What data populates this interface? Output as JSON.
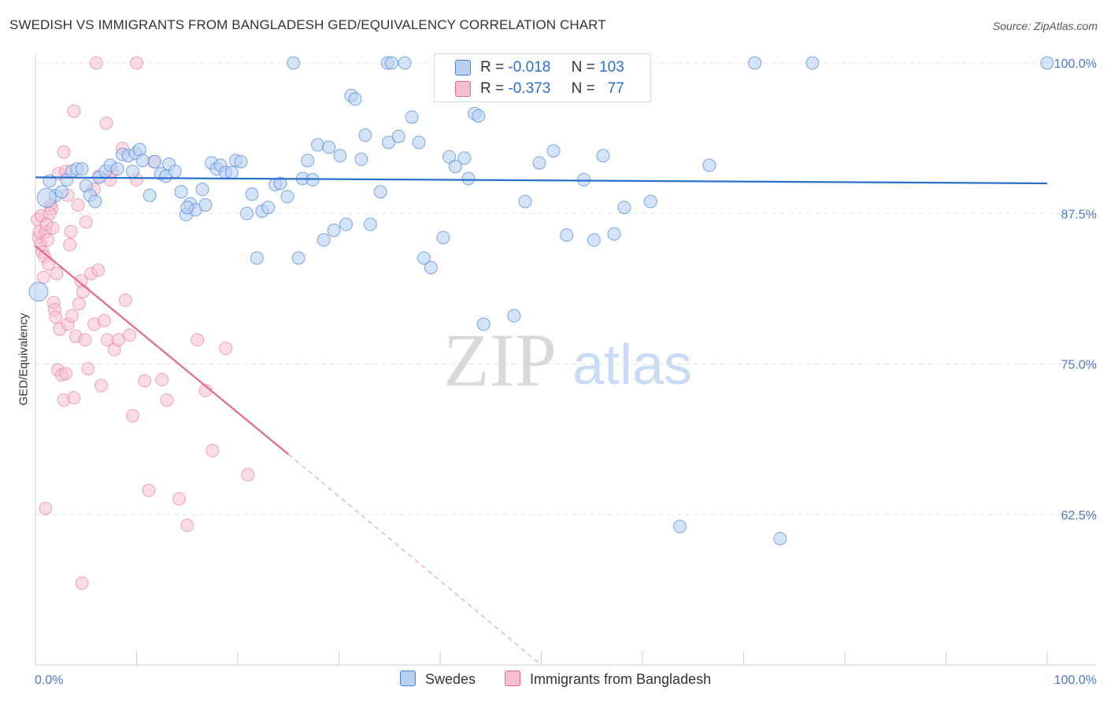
{
  "header": {
    "title": "SWEDISH VS IMMIGRANTS FROM BANGLADESH GED/EQUIVALENCY CORRELATION CHART",
    "source": "Source: ZipAtlas.com"
  },
  "watermark": {
    "zip": "ZIP",
    "atlas": "atlas"
  },
  "colors": {
    "blue": "#4a86d4",
    "blue_fill": "#b9d1f1",
    "pink": "#e2688f",
    "pink_fill": "#f6bfd0",
    "axis_text": "#4a78c2"
  },
  "legend_top": {
    "rows": [
      {
        "r_label": "R =",
        "r_value": "-0.018",
        "n_label": "N =",
        "n_value": "103"
      },
      {
        "r_label": "R =",
        "r_value": "-0.373",
        "n_label": "N =",
        "n_value": "77"
      }
    ]
  },
  "legend_bottom": {
    "items": [
      "Swedes",
      "Immigrants from Bangladesh"
    ]
  },
  "chart_data": {
    "type": "scatter",
    "title": "SWEDISH VS IMMIGRANTS FROM BANGLADESH GED/EQUIVALENCY CORRELATION CHART",
    "xlabel": "",
    "ylabel": "GED/Equivalency",
    "xlim": [
      0,
      100
    ],
    "ylim": [
      50,
      100
    ],
    "x_tick_labels": [
      "0.0%",
      "100.0%"
    ],
    "y_ticks": [
      62.5,
      75.0,
      87.5,
      100.0
    ],
    "y_tick_labels": [
      "62.5%",
      "75.0%",
      "87.5%",
      "100.0%"
    ],
    "grid": true,
    "series": [
      {
        "name": "Swedes",
        "color": "#4a86d4",
        "trend": {
          "x0": 0,
          "y0": 90.5,
          "x1": 100,
          "y1": 90.0
        },
        "points": [
          [
            1.4,
            90.2
          ],
          [
            2.0,
            89.0
          ],
          [
            2.6,
            89.3
          ],
          [
            3.1,
            90.3
          ],
          [
            3.6,
            91.0
          ],
          [
            4.1,
            91.2
          ],
          [
            4.6,
            91.2
          ],
          [
            5.0,
            89.8
          ],
          [
            5.4,
            89.0
          ],
          [
            5.9,
            88.5
          ],
          [
            6.3,
            90.5
          ],
          [
            6.9,
            91.0
          ],
          [
            7.4,
            91.5
          ],
          [
            8.1,
            91.2
          ],
          [
            8.6,
            92.4
          ],
          [
            9.2,
            92.3
          ],
          [
            9.9,
            92.5
          ],
          [
            10.3,
            92.8
          ],
          [
            10.6,
            91.9
          ],
          [
            11.3,
            89.0
          ],
          [
            11.8,
            91.8
          ],
          [
            12.4,
            90.8
          ],
          [
            12.9,
            90.6
          ],
          [
            13.2,
            91.6
          ],
          [
            13.8,
            91.0
          ],
          [
            14.4,
            89.3
          ],
          [
            14.9,
            87.4
          ],
          [
            15.3,
            88.3
          ],
          [
            15.8,
            87.8
          ],
          [
            16.5,
            89.5
          ],
          [
            17.4,
            91.7
          ],
          [
            17.9,
            91.2
          ],
          [
            18.3,
            91.5
          ],
          [
            18.8,
            90.9
          ],
          [
            19.4,
            90.9
          ],
          [
            19.8,
            91.9
          ],
          [
            20.3,
            91.8
          ],
          [
            20.9,
            87.5
          ],
          [
            21.4,
            89.1
          ],
          [
            21.9,
            83.8
          ],
          [
            22.4,
            87.7
          ],
          [
            23.0,
            88.0
          ],
          [
            23.7,
            89.9
          ],
          [
            24.2,
            90.0
          ],
          [
            24.9,
            88.9
          ],
          [
            25.5,
            100.0
          ],
          [
            26.0,
            83.8
          ],
          [
            26.4,
            90.4
          ],
          [
            26.9,
            91.9
          ],
          [
            27.4,
            90.3
          ],
          [
            27.9,
            93.2
          ],
          [
            28.5,
            85.3
          ],
          [
            29.0,
            93.0
          ],
          [
            29.5,
            86.1
          ],
          [
            30.1,
            92.3
          ],
          [
            30.7,
            86.6
          ],
          [
            31.2,
            97.3
          ],
          [
            31.6,
            97.0
          ],
          [
            32.2,
            92.0
          ],
          [
            32.6,
            94.0
          ],
          [
            33.1,
            86.6
          ],
          [
            34.1,
            89.3
          ],
          [
            34.9,
            93.4
          ],
          [
            34.8,
            100.0
          ],
          [
            35.2,
            100.0
          ],
          [
            35.9,
            93.9
          ],
          [
            36.5,
            100.0
          ],
          [
            37.2,
            95.5
          ],
          [
            37.9,
            93.4
          ],
          [
            38.4,
            83.8
          ],
          [
            39.1,
            83.0
          ],
          [
            40.3,
            85.5
          ],
          [
            40.9,
            92.2
          ],
          [
            41.5,
            91.4
          ],
          [
            41.9,
            100.0
          ],
          [
            42.4,
            92.1
          ],
          [
            42.8,
            90.4
          ],
          [
            43.4,
            95.8
          ],
          [
            43.8,
            95.6
          ],
          [
            44.3,
            78.3
          ],
          [
            46.0,
            100.0
          ],
          [
            47.3,
            79.0
          ],
          [
            48.4,
            88.5
          ],
          [
            49.8,
            91.7
          ],
          [
            51.2,
            92.7
          ],
          [
            52.5,
            85.7
          ],
          [
            54.2,
            90.3
          ],
          [
            55.2,
            85.3
          ],
          [
            56.1,
            92.3
          ],
          [
            57.2,
            85.8
          ],
          [
            58.2,
            88.0
          ],
          [
            60.8,
            88.5
          ],
          [
            63.7,
            61.5
          ],
          [
            66.6,
            91.5
          ],
          [
            73.6,
            60.5
          ],
          [
            71.1,
            100.0
          ],
          [
            76.8,
            100.0
          ],
          [
            100.0,
            100.0
          ],
          [
            0.3,
            81.0
          ],
          [
            1.1,
            88.8
          ],
          [
            9.6,
            91.0
          ],
          [
            15.0,
            88.0
          ],
          [
            16.8,
            88.2
          ]
        ]
      },
      {
        "name": "Immigrants from Bangladesh",
        "color": "#e2688f",
        "trend": {
          "x0": 0,
          "y0": 84.8,
          "x1": 25,
          "y1": 67.5,
          "dash_x1": 50,
          "dash_y1": 50.0
        },
        "points": [
          [
            0.2,
            87.0
          ],
          [
            0.3,
            85.5
          ],
          [
            0.4,
            86.0
          ],
          [
            0.5,
            84.9
          ],
          [
            0.6,
            87.3
          ],
          [
            0.7,
            84.3
          ],
          [
            0.8,
            82.2
          ],
          [
            0.9,
            83.9
          ],
          [
            1.0,
            86.0
          ],
          [
            1.1,
            86.6
          ],
          [
            1.2,
            85.3
          ],
          [
            1.3,
            83.3
          ],
          [
            1.5,
            88.2
          ],
          [
            1.6,
            87.9
          ],
          [
            1.7,
            86.3
          ],
          [
            1.8,
            80.1
          ],
          [
            1.9,
            79.5
          ],
          [
            2.0,
            78.9
          ],
          [
            2.1,
            82.5
          ],
          [
            2.2,
            74.5
          ],
          [
            2.4,
            77.9
          ],
          [
            2.6,
            74.1
          ],
          [
            2.8,
            72.0
          ],
          [
            3.0,
            74.2
          ],
          [
            3.2,
            78.3
          ],
          [
            3.4,
            84.9
          ],
          [
            3.6,
            79.0
          ],
          [
            3.8,
            72.2
          ],
          [
            4.0,
            77.3
          ],
          [
            4.3,
            80.0
          ],
          [
            4.5,
            81.9
          ],
          [
            4.7,
            81.0
          ],
          [
            4.9,
            77.0
          ],
          [
            5.2,
            74.6
          ],
          [
            5.5,
            82.5
          ],
          [
            5.8,
            78.3
          ],
          [
            6.2,
            82.8
          ],
          [
            6.5,
            73.2
          ],
          [
            6.8,
            78.6
          ],
          [
            7.1,
            77.0
          ],
          [
            7.4,
            90.3
          ],
          [
            7.8,
            76.2
          ],
          [
            8.2,
            77.0
          ],
          [
            8.6,
            92.9
          ],
          [
            8.9,
            80.3
          ],
          [
            9.3,
            77.4
          ],
          [
            9.6,
            70.7
          ],
          [
            10.0,
            90.3
          ],
          [
            10.8,
            73.6
          ],
          [
            11.2,
            64.5
          ],
          [
            11.7,
            91.8
          ],
          [
            12.5,
            73.7
          ],
          [
            13.0,
            72.0
          ],
          [
            14.2,
            63.8
          ],
          [
            15.0,
            61.6
          ],
          [
            16.0,
            77.0
          ],
          [
            16.8,
            72.8
          ],
          [
            17.5,
            67.8
          ],
          [
            18.8,
            76.3
          ],
          [
            21.0,
            65.8
          ],
          [
            2.3,
            90.8
          ],
          [
            3.0,
            91.0
          ],
          [
            3.5,
            86.0
          ],
          [
            4.2,
            88.2
          ],
          [
            5.0,
            86.8
          ],
          [
            6.3,
            90.6
          ],
          [
            7.0,
            95.0
          ],
          [
            2.8,
            92.6
          ],
          [
            3.2,
            89.0
          ],
          [
            1.4,
            87.5
          ],
          [
            5.8,
            89.5
          ],
          [
            3.8,
            96.0
          ],
          [
            1.0,
            63.0
          ],
          [
            4.6,
            56.8
          ],
          [
            6.0,
            100.0
          ],
          [
            10.0,
            100.0
          ],
          [
            7.6,
            91.0
          ]
        ]
      }
    ]
  }
}
